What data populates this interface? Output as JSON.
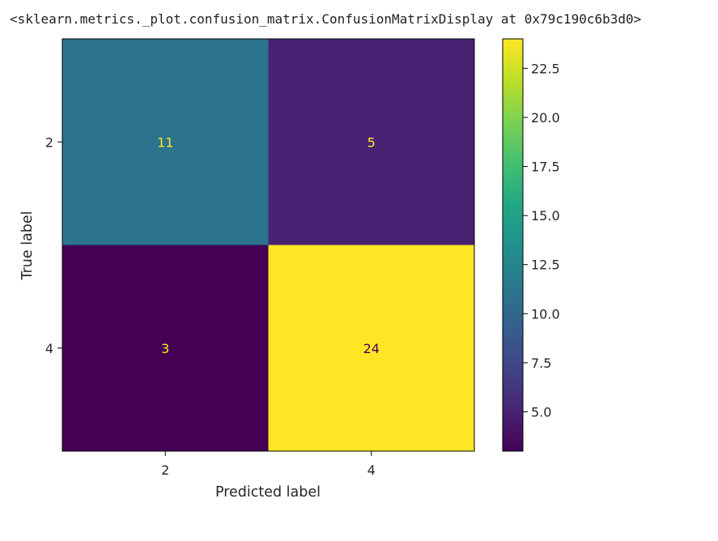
{
  "output": {
    "repr_text": "<sklearn.metrics._plot.confusion_matrix.ConfusionMatrixDisplay at 0x79c190c6b3d0>"
  },
  "chart_data": {
    "type": "heatmap",
    "title": "",
    "xlabel": "Predicted label",
    "ylabel": "True label",
    "x_categories": [
      "2",
      "4"
    ],
    "y_categories": [
      "2",
      "4"
    ],
    "values": [
      [
        11,
        5
      ],
      [
        3,
        24
      ]
    ],
    "colormap": "viridis",
    "vmin": 3,
    "vmax": 24,
    "colorbar_ticks": [
      "5.0",
      "7.5",
      "10.0",
      "12.5",
      "15.0",
      "17.5",
      "20.0",
      "22.5"
    ],
    "light_text_color": "#fde725",
    "dark_text_color": "#440154"
  }
}
